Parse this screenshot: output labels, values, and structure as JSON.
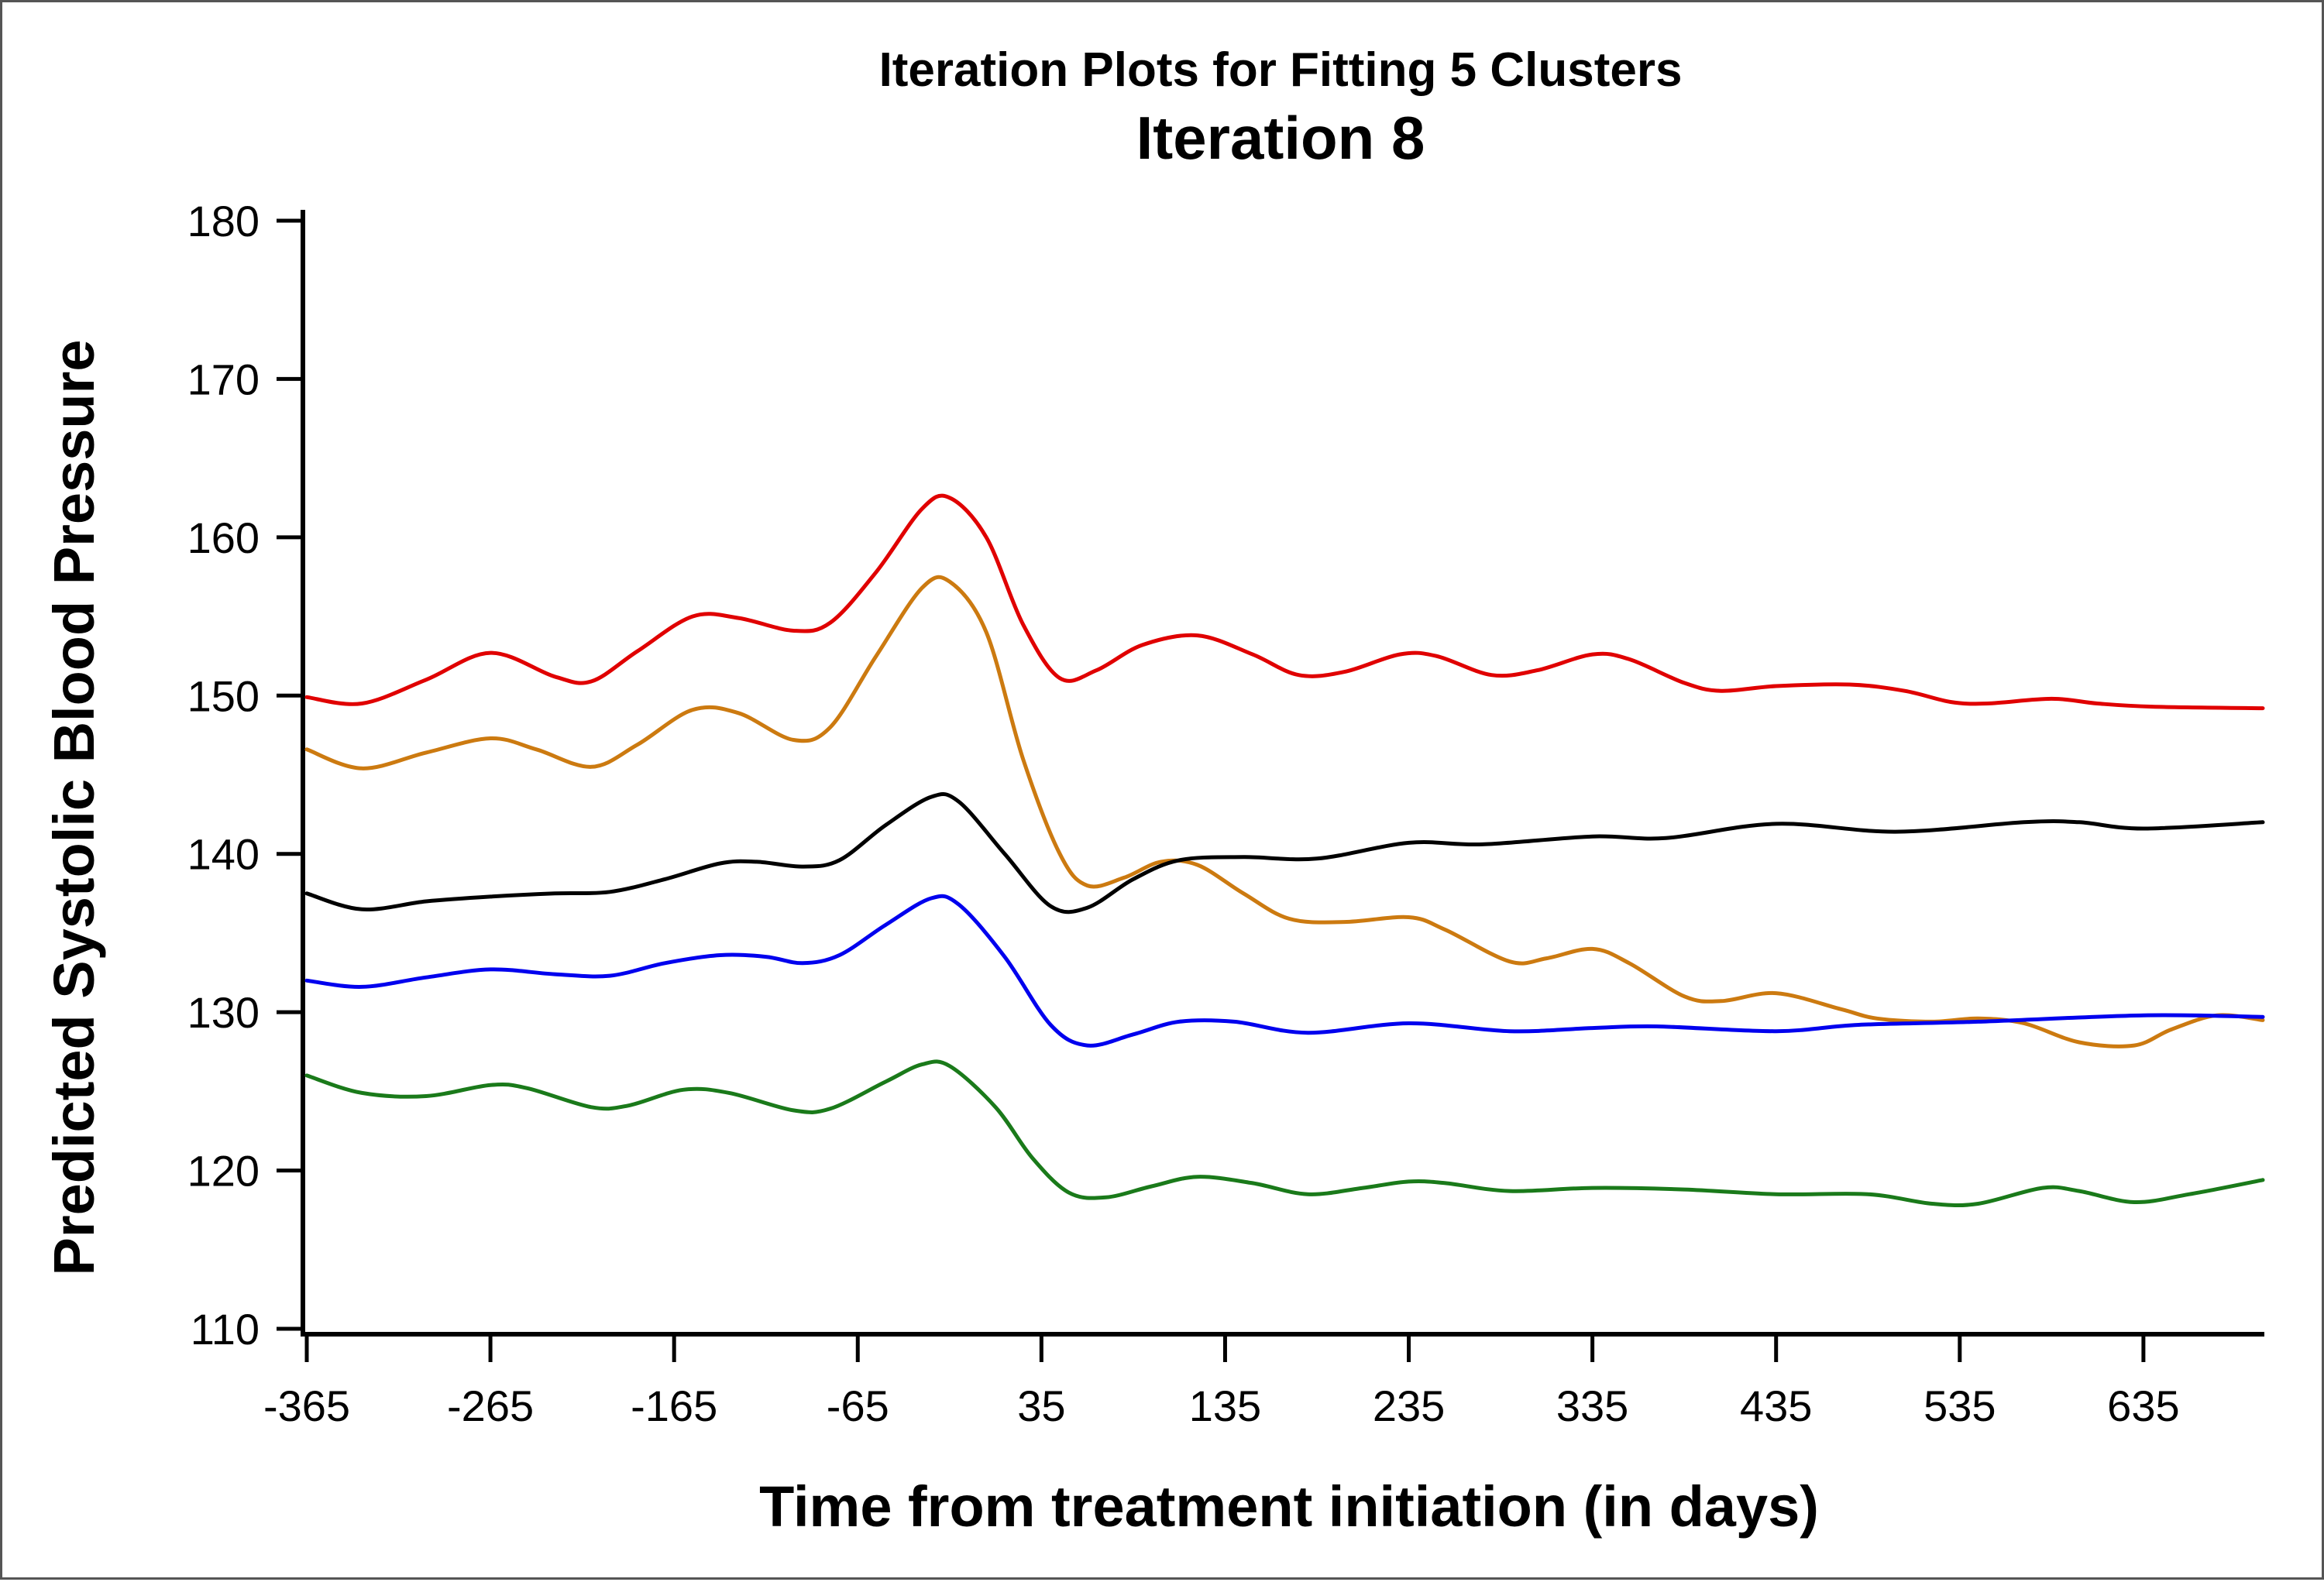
{
  "chart_data": {
    "type": "line",
    "title": "Iteration Plots for Fitting 5 Clusters",
    "subtitle": "Iteration 8",
    "xlabel": "Time from treatment initiation (in days)",
    "ylabel": "Predicted Systolic Blood Pressure",
    "xlim": [
      -365,
      700
    ],
    "ylim": [
      110,
      180
    ],
    "x_ticks": [
      -365,
      -265,
      -165,
      -65,
      35,
      135,
      235,
      335,
      435,
      535,
      635
    ],
    "y_ticks": [
      110,
      120,
      130,
      140,
      150,
      160,
      170,
      180
    ],
    "grid": false,
    "legend": "none",
    "series": [
      {
        "color": "#e00000",
        "points": [
          [
            -365,
            149.9
          ],
          [
            -335,
            149.5
          ],
          [
            -300,
            151.0
          ],
          [
            -265,
            152.7
          ],
          [
            -230,
            151.2
          ],
          [
            -210,
            150.9
          ],
          [
            -185,
            152.8
          ],
          [
            -155,
            155.0
          ],
          [
            -130,
            154.9
          ],
          [
            -100,
            154.1
          ],
          [
            -80,
            154.6
          ],
          [
            -55,
            157.8
          ],
          [
            -30,
            161.8
          ],
          [
            -15,
            162.5
          ],
          [
            5,
            160.0
          ],
          [
            25,
            154.5
          ],
          [
            45,
            151.1
          ],
          [
            65,
            151.6
          ],
          [
            90,
            153.2
          ],
          [
            120,
            153.8
          ],
          [
            150,
            152.6
          ],
          [
            175,
            151.3
          ],
          [
            200,
            151.5
          ],
          [
            230,
            152.6
          ],
          [
            250,
            152.5
          ],
          [
            280,
            151.3
          ],
          [
            305,
            151.6
          ],
          [
            335,
            152.6
          ],
          [
            355,
            152.3
          ],
          [
            385,
            150.8
          ],
          [
            405,
            150.3
          ],
          [
            435,
            150.6
          ],
          [
            475,
            150.7
          ],
          [
            505,
            150.3
          ],
          [
            530,
            149.6
          ],
          [
            550,
            149.5
          ],
          [
            585,
            149.8
          ],
          [
            610,
            149.5
          ],
          [
            640,
            149.3
          ],
          [
            700,
            149.2
          ]
        ]
      },
      {
        "color": "#cc7a10",
        "points": [
          [
            -365,
            146.6
          ],
          [
            -335,
            145.4
          ],
          [
            -300,
            146.4
          ],
          [
            -265,
            147.3
          ],
          [
            -240,
            146.6
          ],
          [
            -210,
            145.5
          ],
          [
            -185,
            146.9
          ],
          [
            -155,
            149.1
          ],
          [
            -130,
            148.9
          ],
          [
            -100,
            147.2
          ],
          [
            -80,
            148.0
          ],
          [
            -55,
            152.5
          ],
          [
            -30,
            156.8
          ],
          [
            -15,
            157.2
          ],
          [
            5,
            154.0
          ],
          [
            25,
            146.0
          ],
          [
            45,
            140.0
          ],
          [
            60,
            138.0
          ],
          [
            80,
            138.5
          ],
          [
            100,
            139.5
          ],
          [
            120,
            139.3
          ],
          [
            145,
            137.5
          ],
          [
            170,
            135.9
          ],
          [
            200,
            135.7
          ],
          [
            235,
            136.0
          ],
          [
            255,
            135.2
          ],
          [
            290,
            133.2
          ],
          [
            310,
            133.4
          ],
          [
            335,
            134.0
          ],
          [
            355,
            133.1
          ],
          [
            385,
            131.0
          ],
          [
            405,
            130.7
          ],
          [
            435,
            131.2
          ],
          [
            470,
            130.2
          ],
          [
            490,
            129.6
          ],
          [
            520,
            129.4
          ],
          [
            545,
            129.6
          ],
          [
            570,
            129.3
          ],
          [
            600,
            128.1
          ],
          [
            630,
            127.9
          ],
          [
            650,
            128.9
          ],
          [
            675,
            129.8
          ],
          [
            700,
            129.5
          ]
        ]
      },
      {
        "color": "#000000",
        "points": [
          [
            -365,
            137.5
          ],
          [
            -335,
            136.5
          ],
          [
            -300,
            137.0
          ],
          [
            -265,
            137.3
          ],
          [
            -230,
            137.5
          ],
          [
            -200,
            137.6
          ],
          [
            -170,
            138.4
          ],
          [
            -140,
            139.4
          ],
          [
            -120,
            139.5
          ],
          [
            -95,
            139.2
          ],
          [
            -75,
            139.6
          ],
          [
            -50,
            141.8
          ],
          [
            -25,
            143.6
          ],
          [
            -10,
            143.3
          ],
          [
            15,
            140.0
          ],
          [
            40,
            136.7
          ],
          [
            60,
            136.6
          ],
          [
            85,
            138.4
          ],
          [
            110,
            139.6
          ],
          [
            145,
            139.8
          ],
          [
            185,
            139.7
          ],
          [
            235,
            140.7
          ],
          [
            275,
            140.6
          ],
          [
            335,
            141.1
          ],
          [
            375,
            141.0
          ],
          [
            435,
            141.9
          ],
          [
            500,
            141.4
          ],
          [
            570,
            142.0
          ],
          [
            600,
            142.0
          ],
          [
            635,
            141.6
          ],
          [
            700,
            142.0
          ]
        ]
      },
      {
        "color": "#0000ee",
        "points": [
          [
            -365,
            132.0
          ],
          [
            -335,
            131.6
          ],
          [
            -300,
            132.2
          ],
          [
            -265,
            132.7
          ],
          [
            -230,
            132.4
          ],
          [
            -200,
            132.3
          ],
          [
            -170,
            133.1
          ],
          [
            -140,
            133.6
          ],
          [
            -115,
            133.5
          ],
          [
            -95,
            133.1
          ],
          [
            -75,
            133.6
          ],
          [
            -50,
            135.5
          ],
          [
            -25,
            137.2
          ],
          [
            -10,
            136.8
          ],
          [
            15,
            133.5
          ],
          [
            40,
            129.2
          ],
          [
            60,
            127.9
          ],
          [
            85,
            128.6
          ],
          [
            110,
            129.4
          ],
          [
            140,
            129.4
          ],
          [
            180,
            128.7
          ],
          [
            235,
            129.3
          ],
          [
            290,
            128.8
          ],
          [
            335,
            129.0
          ],
          [
            370,
            129.1
          ],
          [
            435,
            128.8
          ],
          [
            480,
            129.2
          ],
          [
            545,
            129.4
          ],
          [
            635,
            129.8
          ],
          [
            700,
            129.7
          ]
        ]
      },
      {
        "color": "#1a7a1a",
        "points": [
          [
            -365,
            126.0
          ],
          [
            -335,
            124.9
          ],
          [
            -300,
            124.7
          ],
          [
            -265,
            125.4
          ],
          [
            -245,
            125.2
          ],
          [
            -210,
            124.0
          ],
          [
            -190,
            124.1
          ],
          [
            -160,
            125.1
          ],
          [
            -135,
            124.9
          ],
          [
            -100,
            123.8
          ],
          [
            -80,
            123.9
          ],
          [
            -50,
            125.6
          ],
          [
            -30,
            126.7
          ],
          [
            -15,
            126.6
          ],
          [
            10,
            124.0
          ],
          [
            30,
            120.8
          ],
          [
            50,
            118.6
          ],
          [
            70,
            118.3
          ],
          [
            95,
            119.0
          ],
          [
            120,
            119.6
          ],
          [
            150,
            119.2
          ],
          [
            180,
            118.5
          ],
          [
            210,
            118.9
          ],
          [
            235,
            119.3
          ],
          [
            255,
            119.2
          ],
          [
            290,
            118.7
          ],
          [
            335,
            118.9
          ],
          [
            385,
            118.8
          ],
          [
            435,
            118.5
          ],
          [
            485,
            118.5
          ],
          [
            520,
            117.9
          ],
          [
            545,
            117.9
          ],
          [
            580,
            118.9
          ],
          [
            600,
            118.7
          ],
          [
            630,
            118.0
          ],
          [
            660,
            118.5
          ],
          [
            700,
            119.4
          ]
        ]
      }
    ]
  }
}
